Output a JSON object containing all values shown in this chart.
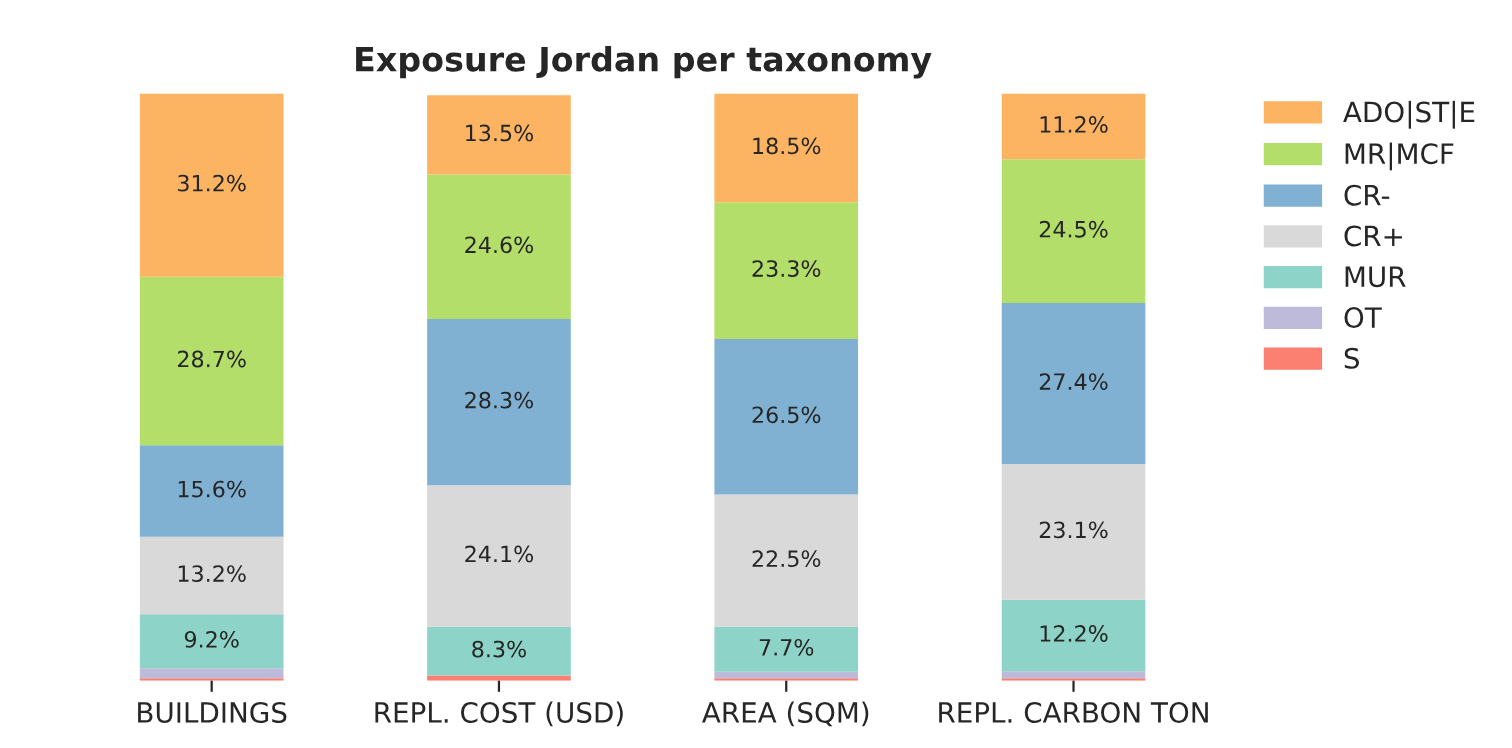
{
  "chart_data": {
    "type": "bar",
    "title": "Exposure Jordan per taxonomy",
    "stacked": true,
    "categories": [
      "BUILDINGS",
      "REPL. COST (USD)",
      "AREA (SQM)",
      "REPL. CARBON TON"
    ],
    "series": [
      {
        "name": "S",
        "color": "#fb8072",
        "values": [
          0.4,
          0.9,
          0.4,
          0.4
        ],
        "value_labels": [
          null,
          null,
          null,
          null
        ]
      },
      {
        "name": "OT",
        "color": "#bebada",
        "values": [
          1.7,
          null,
          1.1,
          1.2
        ],
        "value_labels": [
          null,
          null,
          null,
          null
        ]
      },
      {
        "name": "MUR",
        "color": "#8dd3c7",
        "values": [
          9.2,
          8.3,
          7.7,
          12.2
        ],
        "value_labels": [
          "9.2%",
          "8.3%",
          "7.7%",
          "12.2%"
        ]
      },
      {
        "name": "CR+",
        "color": "#d9d9d9",
        "values": [
          13.2,
          24.1,
          22.5,
          23.1
        ],
        "value_labels": [
          "13.2%",
          "24.1%",
          "22.5%",
          "23.1%"
        ]
      },
      {
        "name": "CR-",
        "color": "#80b1d3",
        "values": [
          15.6,
          28.3,
          26.5,
          27.4
        ],
        "value_labels": [
          "15.6%",
          "28.3%",
          "26.5%",
          "27.4%"
        ]
      },
      {
        "name": "MR|MCF",
        "color": "#b3de69",
        "values": [
          28.7,
          24.6,
          23.3,
          24.5
        ],
        "value_labels": [
          "28.7%",
          "24.6%",
          "23.3%",
          "24.5%"
        ]
      },
      {
        "name": "ADO|ST|E",
        "color": "#fdb462",
        "values": [
          31.2,
          13.5,
          18.5,
          11.2
        ],
        "value_labels": [
          "31.2%",
          "13.5%",
          "18.5%",
          "11.2%"
        ]
      }
    ],
    "ylim": [
      0,
      100
    ],
    "tick_labels": "x",
    "grid": false,
    "legend": "top right"
  }
}
